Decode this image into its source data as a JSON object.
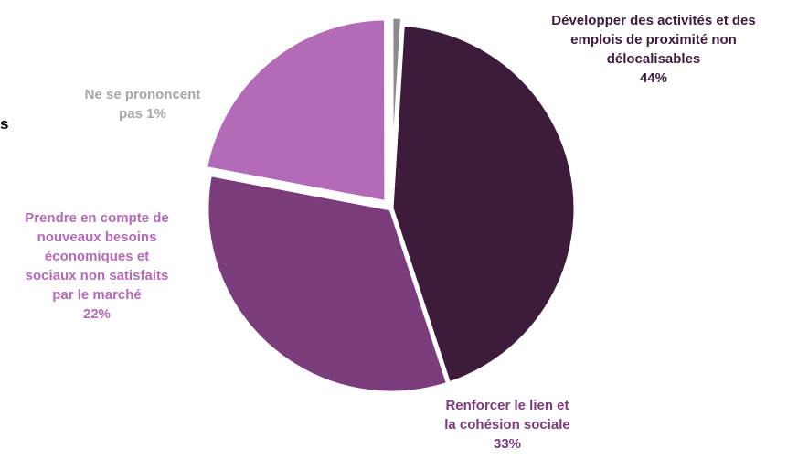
{
  "cut_text": "s",
  "chart_data": {
    "type": "pie",
    "title": "",
    "slices": [
      {
        "label_lines": [
          "Développer des activités et des",
          "emplois de proximité non",
          "délocalisables"
        ],
        "value": 44,
        "value_label": "44%",
        "color": "#3d1c3b",
        "label_color": "#3d1c3b",
        "exploded": false
      },
      {
        "label_lines": [
          "Renforcer le lien et",
          "la cohésion sociale"
        ],
        "value": 33,
        "value_label": "33%",
        "color": "#7b3c7c",
        "label_color": "#7b3c7c",
        "exploded": false
      },
      {
        "label_lines": [
          "Prendre en compte de",
          "nouveaux besoins",
          "économiques et",
          "sociaux non satisfaits",
          "par le marché"
        ],
        "value": 22,
        "value_label": "22%",
        "color": "#b46bb7",
        "label_color": "#b46bb7",
        "exploded": true
      },
      {
        "label_lines": [
          "Ne se prononcent",
          "pas  1%"
        ],
        "value": 1,
        "value_label": "",
        "color": "#8c8c8c",
        "label_color": "#a6a6a6",
        "exploded": true
      }
    ],
    "start_angle_deg": 3.5,
    "legend": "none"
  }
}
